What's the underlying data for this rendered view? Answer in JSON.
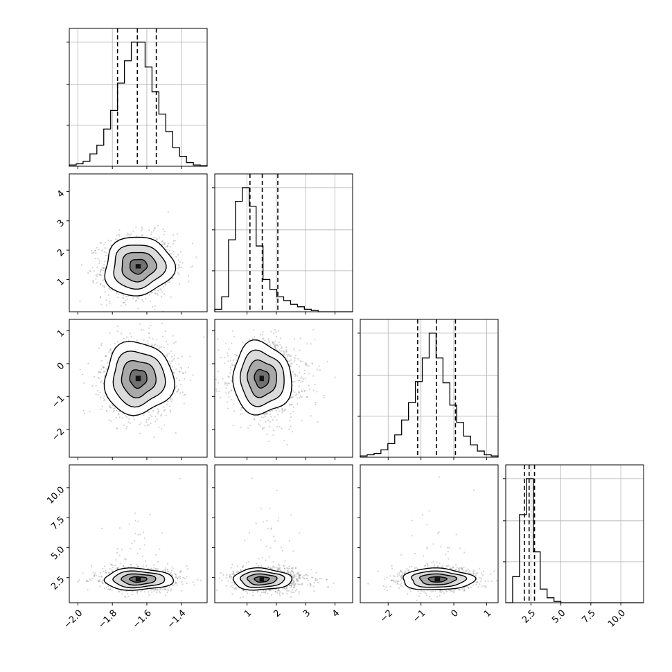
{
  "chart_data": {
    "type": "corner",
    "grid": true,
    "parameters": [
      {
        "range": [
          -2.05,
          -1.25
        ],
        "ticks": [
          -2.0,
          -1.8,
          -1.6,
          -1.4
        ],
        "tick_labels": [
          "−2.0",
          "−1.8",
          "−1.6",
          "−1.4"
        ],
        "quantiles": [
          -1.77,
          -1.655,
          -1.545
        ],
        "mode": -1.65,
        "hist_bins": 20,
        "hist_peak": 1.0
      },
      {
        "range": [
          -0.1,
          4.6
        ],
        "ticks": [
          1,
          2,
          3,
          4
        ],
        "tick_labels": [
          "1",
          "2",
          "3",
          "4"
        ],
        "quantiles": [
          1.1,
          1.52,
          2.05
        ],
        "mode": 1.5,
        "hist_bins": 20,
        "hist_peak": 1.0
      },
      {
        "range": [
          -2.85,
          1.35
        ],
        "ticks": [
          -2,
          -1,
          0,
          1
        ],
        "tick_labels": [
          "−2",
          "−1",
          "0",
          "1"
        ],
        "quantiles": [
          -1.1,
          -0.53,
          0.05
        ],
        "mode": -0.45,
        "hist_bins": 20,
        "hist_peak": 1.0
      },
      {
        "range": [
          0.4,
          11.9
        ],
        "ticks": [
          2.5,
          5.0,
          7.5,
          10.0
        ],
        "tick_labels": [
          "2.5",
          "5.0",
          "7.5",
          "10.0"
        ],
        "quantiles": [
          1.95,
          2.35,
          2.8
        ],
        "mode": 2.3,
        "hist_bins": 20,
        "hist_peak": 1.0
      }
    ],
    "histograms": [
      [
        0.01,
        0.02,
        0.04,
        0.1,
        0.17,
        0.3,
        0.45,
        0.67,
        0.85,
        1.0,
        1.0,
        0.8,
        0.6,
        0.42,
        0.28,
        0.15,
        0.08,
        0.03,
        0.01,
        0.005
      ],
      [
        0.02,
        0.12,
        0.58,
        0.89,
        1.0,
        0.85,
        0.53,
        0.26,
        0.18,
        0.12,
        0.09,
        0.06,
        0.04,
        0.02,
        0.01,
        0.0,
        0.0,
        0.0,
        0.0,
        0.0
      ],
      [
        0.01,
        0.02,
        0.03,
        0.06,
        0.11,
        0.18,
        0.3,
        0.44,
        0.61,
        0.8,
        1.0,
        0.8,
        0.6,
        0.42,
        0.28,
        0.17,
        0.1,
        0.05,
        0.02,
        0.01
      ],
      [
        0.0,
        0.21,
        0.71,
        1.0,
        0.41,
        0.11,
        0.04,
        0.01,
        0.0,
        0.0,
        0.0,
        0.0,
        0.0,
        0.0,
        0.0,
        0.0,
        0.0,
        0.0,
        0.0,
        0.0
      ]
    ],
    "pairs": [
      {
        "row": 1,
        "col": 0,
        "center": [
          -1.65,
          1.45
        ],
        "sigma": [
          0.1,
          0.5
        ],
        "rho": 0.05
      },
      {
        "row": 2,
        "col": 0,
        "center": [
          -1.65,
          -0.45
        ],
        "sigma": [
          0.1,
          0.55
        ],
        "rho": 0.0
      },
      {
        "row": 2,
        "col": 1,
        "center": [
          1.5,
          -0.45
        ],
        "sigma": [
          0.5,
          0.55
        ],
        "rho": -0.05
      },
      {
        "row": 3,
        "col": 0,
        "center": [
          -1.65,
          2.35
        ],
        "sigma": [
          0.1,
          0.45
        ],
        "rho": 0.0
      },
      {
        "row": 3,
        "col": 1,
        "center": [
          1.5,
          2.35
        ],
        "sigma": [
          0.5,
          0.45
        ],
        "rho": 0.0
      },
      {
        "row": 3,
        "col": 2,
        "center": [
          -0.5,
          2.35
        ],
        "sigma": [
          0.55,
          0.45
        ],
        "rho": 0.0
      }
    ],
    "contour_levels_sigma": [
      0.5,
      1.0,
      1.5,
      2.0
    ],
    "colors": {
      "line": "#000000",
      "grid": "#b0b0b0",
      "scatter": "#7f7f7f",
      "dashed": "#000000"
    }
  }
}
